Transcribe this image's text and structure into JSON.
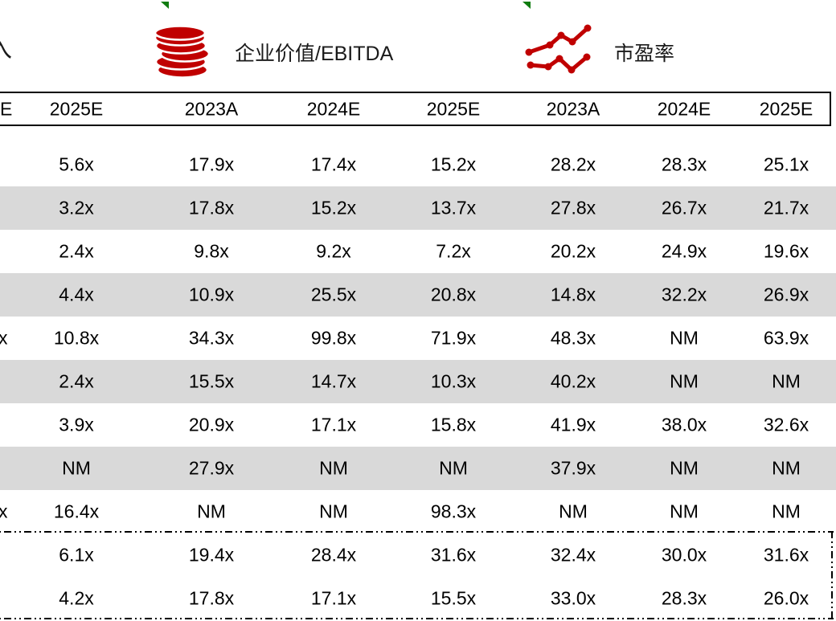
{
  "colors": {
    "accent_red": "#C00000",
    "row_shade": "#D9D9D9",
    "flag_green": "#107C10",
    "border_black": "#000000"
  },
  "legend": {
    "clipped_left_text": "入",
    "items": [
      {
        "icon": "coins-icon",
        "label": "企业价值/EBITDA"
      },
      {
        "icon": "line-chart-icon",
        "label": "市盈率"
      }
    ]
  },
  "table": {
    "clipped_header_fragment": "E",
    "column_headers": [
      "2025E",
      "2023A",
      "2024E",
      "2025E",
      "2023A",
      "2024E",
      "2025E"
    ],
    "rows": [
      {
        "clipped_fragment": "",
        "shaded": false,
        "values": [
          "5.6x",
          "17.9x",
          "17.4x",
          "15.2x",
          "28.2x",
          "28.3x",
          "25.1x"
        ]
      },
      {
        "clipped_fragment": "",
        "shaded": true,
        "values": [
          "3.2x",
          "17.8x",
          "15.2x",
          "13.7x",
          "27.8x",
          "26.7x",
          "21.7x"
        ]
      },
      {
        "clipped_fragment": "",
        "shaded": false,
        "values": [
          "2.4x",
          "9.8x",
          "9.2x",
          "7.2x",
          "20.2x",
          "24.9x",
          "19.6x"
        ]
      },
      {
        "clipped_fragment": "",
        "shaded": true,
        "values": [
          "4.4x",
          "10.9x",
          "25.5x",
          "20.8x",
          "14.8x",
          "32.2x",
          "26.9x"
        ]
      },
      {
        "clipped_fragment": "x",
        "shaded": false,
        "values": [
          "10.8x",
          "34.3x",
          "99.8x",
          "71.9x",
          "48.3x",
          "NM",
          "63.9x"
        ]
      },
      {
        "clipped_fragment": "",
        "shaded": true,
        "values": [
          "2.4x",
          "15.5x",
          "14.7x",
          "10.3x",
          "40.2x",
          "NM",
          "NM"
        ]
      },
      {
        "clipped_fragment": "",
        "shaded": false,
        "values": [
          "3.9x",
          "20.9x",
          "17.1x",
          "15.8x",
          "41.9x",
          "38.0x",
          "32.6x"
        ]
      },
      {
        "clipped_fragment": "",
        "shaded": true,
        "values": [
          "NM",
          "27.9x",
          "NM",
          "NM",
          "37.9x",
          "NM",
          "NM"
        ]
      },
      {
        "clipped_fragment": "x",
        "shaded": false,
        "values": [
          "16.4x",
          "NM",
          "NM",
          "98.3x",
          "NM",
          "NM",
          "NM"
        ]
      }
    ],
    "summary_rows": [
      {
        "clipped_fragment": "",
        "values": [
          "6.1x",
          "19.4x",
          "28.4x",
          "31.6x",
          "32.4x",
          "30.0x",
          "31.6x"
        ]
      },
      {
        "clipped_fragment": "",
        "values": [
          "4.2x",
          "17.8x",
          "17.1x",
          "15.5x",
          "33.0x",
          "28.3x",
          "26.0x"
        ]
      }
    ]
  }
}
